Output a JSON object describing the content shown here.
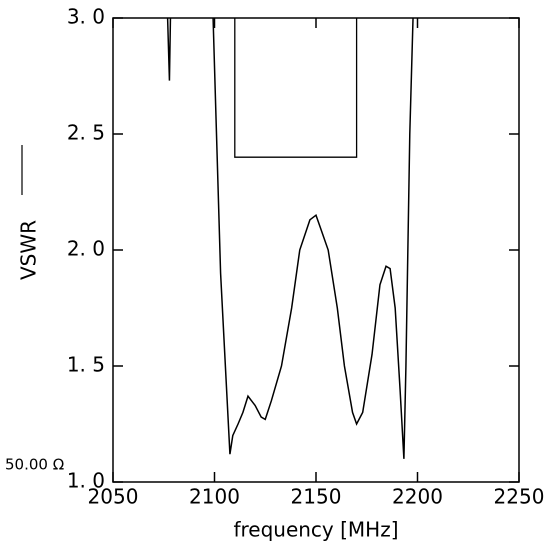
{
  "chart_data": {
    "type": "line",
    "x_label": "frequency [MHz]",
    "y_label": "VSWR",
    "impedance_label": "50.00 Ω",
    "x": [
      2076.9,
      2077.8,
      2078.3,
      null,
      2099.3,
      2103,
      2107.6,
      2109,
      2111.6,
      2114,
      2116.5,
      2120,
      2123,
      2125,
      2128,
      2133,
      2138,
      2142,
      2147,
      2150,
      2152,
      2156,
      2160.5,
      2164,
      2168,
      2170,
      2173,
      2177.6,
      2181.5,
      2184.5,
      2186.5,
      2189,
      2191.4,
      2193.3,
      2194.3,
      2196.2,
      2197.8
    ],
    "series": [
      {
        "color": "#000000",
        "values": [
          3.0,
          2.73,
          3.0,
          null,
          3.0,
          1.9,
          1.12,
          1.2,
          1.25,
          1.3,
          1.37,
          1.33,
          1.28,
          1.27,
          1.35,
          1.5,
          1.75,
          2.0,
          2.13,
          2.15,
          2.1,
          2.0,
          1.75,
          1.5,
          1.3,
          1.25,
          1.3,
          1.55,
          1.85,
          1.93,
          1.92,
          1.75,
          1.4,
          1.1,
          1.5,
          2.5,
          3.0
        ]
      }
    ],
    "spec_box": {
      "x": [
        2110,
        2170
      ],
      "y": [
        2.4,
        3.0
      ]
    },
    "xlim": [
      2050,
      2250
    ],
    "xticks": [
      2050,
      2100,
      2150,
      2200,
      2250
    ],
    "ylim": [
      1.0,
      3.0
    ],
    "yticks": [
      {
        "value": 1.0,
        "label": "1. 0"
      },
      {
        "value": 1.5,
        "label": "1. 5"
      },
      {
        "value": 2.0,
        "label": "2. 0"
      },
      {
        "value": 2.5,
        "label": "2. 5"
      },
      {
        "value": 3.0,
        "label": "3. 0"
      }
    ]
  }
}
